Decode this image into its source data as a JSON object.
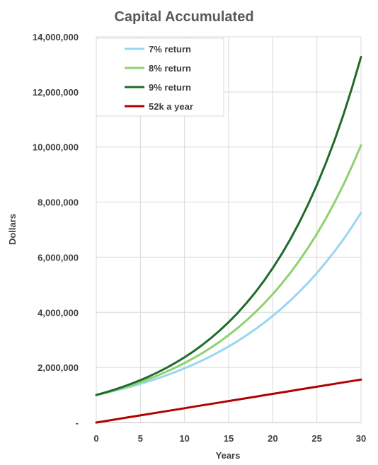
{
  "chart_data": {
    "type": "line",
    "title": "Capital Accumulated",
    "xlabel": "Years",
    "ylabel": "Dollars",
    "xlim": [
      0,
      30
    ],
    "ylim": [
      0,
      14000000
    ],
    "x_ticks": [
      0,
      5,
      10,
      15,
      20,
      25,
      30
    ],
    "y_ticks": [
      0,
      2000000,
      4000000,
      6000000,
      8000000,
      10000000,
      12000000,
      14000000
    ],
    "y_tick_labels": [
      "-",
      "2,000,000",
      "4,000,000",
      "6,000,000",
      "8,000,000",
      "10,000,000",
      "12,000,000",
      "14,000,000"
    ],
    "grid": true,
    "legend_position": "top-left",
    "x": [
      0,
      1,
      2,
      3,
      4,
      5,
      6,
      7,
      8,
      9,
      10,
      11,
      12,
      13,
      14,
      15,
      16,
      17,
      18,
      19,
      20,
      21,
      22,
      23,
      24,
      25,
      26,
      27,
      28,
      29,
      30
    ],
    "series": [
      {
        "name": "7% return",
        "color": "#9ad6f0",
        "values": [
          1000000,
          1070000,
          1145000,
          1225000,
          1311000,
          1403000,
          1501000,
          1606000,
          1718000,
          1838000,
          1967000,
          2105000,
          2252000,
          2410000,
          2579000,
          2759000,
          2952000,
          3159000,
          3380000,
          3617000,
          3870000,
          4141000,
          4430000,
          4741000,
          5072000,
          5427000,
          5807000,
          6214000,
          6649000,
          7114000,
          7612000
        ]
      },
      {
        "name": "8% return",
        "color": "#8fd16e",
        "values": [
          1000000,
          1080000,
          1166000,
          1260000,
          1360000,
          1469000,
          1587000,
          1714000,
          1851000,
          1999000,
          2159000,
          2332000,
          2518000,
          2720000,
          2937000,
          3172000,
          3426000,
          3700000,
          3996000,
          4316000,
          4661000,
          5034000,
          5437000,
          5871000,
          6341000,
          6848000,
          7396000,
          7988000,
          8627000,
          9317000,
          10063000
        ]
      },
      {
        "name": "9% return",
        "color": "#1e6b2a",
        "values": [
          1000000,
          1090000,
          1188000,
          1295000,
          1412000,
          1539000,
          1677000,
          1828000,
          1993000,
          2172000,
          2367000,
          2580000,
          2813000,
          3066000,
          3342000,
          3642000,
          3970000,
          4328000,
          4717000,
          5142000,
          5604000,
          6109000,
          6659000,
          7258000,
          7911000,
          8623000,
          9399000,
          10245000,
          11167000,
          12172000,
          13268000
        ]
      },
      {
        "name": "52k a year",
        "color": "#b30000",
        "values": [
          0,
          52000,
          104000,
          156000,
          208000,
          260000,
          312000,
          364000,
          416000,
          468000,
          520000,
          572000,
          624000,
          676000,
          728000,
          780000,
          832000,
          884000,
          936000,
          988000,
          1040000,
          1092000,
          1144000,
          1196000,
          1248000,
          1300000,
          1352000,
          1404000,
          1456000,
          1508000,
          1560000
        ]
      }
    ]
  }
}
